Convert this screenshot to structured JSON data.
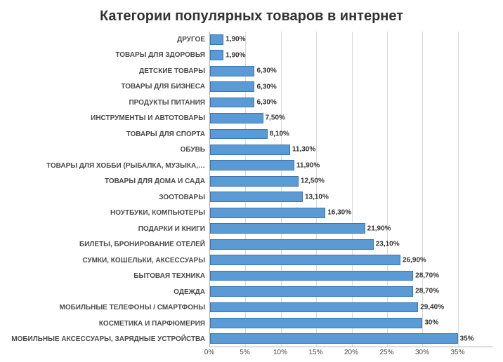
{
  "chart": {
    "type": "bar-horizontal",
    "title": "Категории популярных товаров в интернет",
    "title_fontsize": 20,
    "title_color": "#333333",
    "background_color": "#ffffff",
    "bar_color": "#5b9bd5",
    "bar_border_color": "#3a75b0",
    "grid_color": "#d9d9d9",
    "axis_color": "#b0b0b0",
    "label_color": "#4a4a4a",
    "datalabel_color": "#333333",
    "datalabel_fontsize": 10,
    "ylabel_fontsize": 10,
    "xlabel_fontsize": 10,
    "xlim": [
      0,
      40
    ],
    "xtick_step": 5,
    "xticks": [
      {
        "pos": 0,
        "label": "0%"
      },
      {
        "pos": 5,
        "label": "5%"
      },
      {
        "pos": 10,
        "label": "10%"
      },
      {
        "pos": 15,
        "label": "15%"
      },
      {
        "pos": 20,
        "label": "20%"
      },
      {
        "pos": 25,
        "label": "25%"
      },
      {
        "pos": 30,
        "label": "30%"
      },
      {
        "pos": 35,
        "label": "35%"
      }
    ],
    "categories": [
      {
        "label": "ДРУГОЕ",
        "value": 1.9,
        "value_label": "1,90%"
      },
      {
        "label": "ТОВАРЫ ДЛЯ ЗДОРОВЬЯ",
        "value": 1.9,
        "value_label": "1,90%"
      },
      {
        "label": "ДЕТСКИЕ ТОВАРЫ",
        "value": 6.3,
        "value_label": "6,30%"
      },
      {
        "label": "ТОВАРЫ ДЛЯ БИЗНЕСА",
        "value": 6.3,
        "value_label": "6,30%"
      },
      {
        "label": "ПРОДУКТЫ ПИТАНИЯ",
        "value": 6.3,
        "value_label": "6,30%"
      },
      {
        "label": "ИНСТРУМЕНТЫ И АВТОТОВАРЫ",
        "value": 7.5,
        "value_label": "7,50%"
      },
      {
        "label": "ТОВАРЫ ДЛЯ СПОРТА",
        "value": 8.1,
        "value_label": "8,10%"
      },
      {
        "label": "ОБУВЬ",
        "value": 11.3,
        "value_label": "11,30%"
      },
      {
        "label": "ТОВАРЫ ДЛЯ ХОББИ (РЫБАЛКА, МУЗЫКА,…",
        "value": 11.9,
        "value_label": "11,90%"
      },
      {
        "label": "ТОВАРЫ ДЛЯ ДОМА И САДА",
        "value": 12.5,
        "value_label": "12,50%"
      },
      {
        "label": "ЗООТОВАРЫ",
        "value": 13.1,
        "value_label": "13,10%"
      },
      {
        "label": "НОУТБУКИ, КОМПЬЮТЕРЫ",
        "value": 16.3,
        "value_label": "16,30%"
      },
      {
        "label": "ПОДАРКИ И КНИГИ",
        "value": 21.9,
        "value_label": "21,90%"
      },
      {
        "label": "БИЛЕТЫ, БРОНИРОВАНИЕ ОТЕЛЕЙ",
        "value": 23.1,
        "value_label": "23,10%"
      },
      {
        "label": "СУМКИ, КОШЕЛЬКИ, АКСЕССУАРЫ",
        "value": 26.9,
        "value_label": "26,90%"
      },
      {
        "label": "БЫТОВАЯ ТЕХНИКА",
        "value": 28.7,
        "value_label": "28,70%"
      },
      {
        "label": "ОДЕЖДА",
        "value": 28.7,
        "value_label": "28,70%"
      },
      {
        "label": "МОБИЛЬНЫЕ ТЕЛЕФОНЫ / СМАРТФОНЫ",
        "value": 29.4,
        "value_label": "29,40%"
      },
      {
        "label": "КОСМЕТИКА И ПАРФЮМЕРИЯ",
        "value": 30.0,
        "value_label": "30%"
      },
      {
        "label": "МОБИЛЬНЫЕ АКСЕССУАРЫ, ЗАРЯДНЫЕ УСТРОЙСТВА",
        "value": 35.0,
        "value_label": "35%"
      }
    ]
  }
}
